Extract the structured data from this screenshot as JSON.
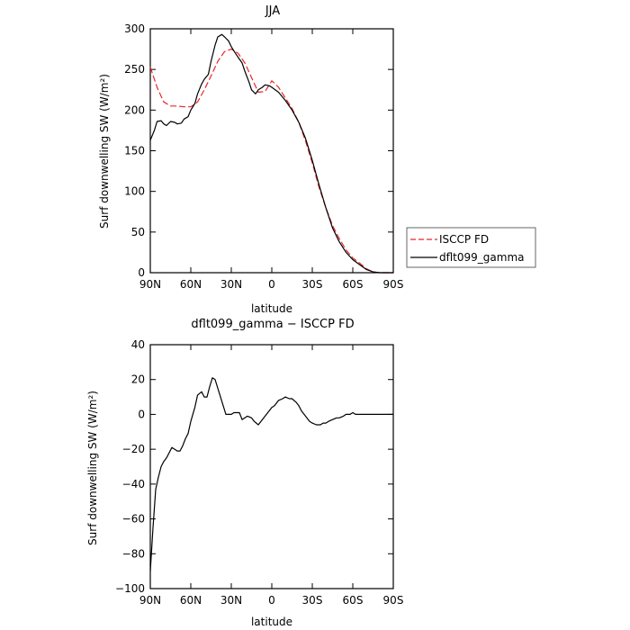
{
  "chart_data": [
    {
      "type": "line",
      "title": "JJA",
      "xlabel": "latitude",
      "ylabel": "Surf downwelling SW (W/m²)",
      "ylim": [
        0,
        300
      ],
      "xlim": [
        90,
        -90
      ],
      "x_ticks": [
        90,
        60,
        30,
        0,
        -30,
        -60,
        -90
      ],
      "x_tick_labels": [
        "90N",
        "60N",
        "30N",
        "0",
        "30S",
        "60S",
        "90S"
      ],
      "y_ticks": [
        0,
        50,
        100,
        150,
        200,
        250,
        300
      ],
      "y_tick_labels": [
        "0",
        "50",
        "100",
        "150",
        "200",
        "250",
        "300"
      ],
      "legend": {
        "placement": "right-outside"
      },
      "series": [
        {
          "name": "ISCCP FD",
          "color": "#e8262a",
          "style": "dashed",
          "x": [
            90,
            85,
            80,
            75,
            70,
            65,
            60,
            55,
            50,
            45,
            40,
            35,
            30,
            25,
            20,
            15,
            10,
            5,
            0,
            -5,
            -10,
            -15,
            -20,
            -25,
            -30,
            -35,
            -40,
            -45,
            -50,
            -55,
            -60,
            -65,
            -70,
            -75,
            -80,
            -85,
            -90
          ],
          "y": [
            253,
            228,
            210,
            205,
            205,
            204,
            204,
            210,
            225,
            242,
            260,
            272,
            275,
            270,
            258,
            240,
            222,
            223,
            236,
            228,
            215,
            202,
            185,
            162,
            135,
            105,
            80,
            58,
            42,
            28,
            18,
            12,
            5,
            1,
            0,
            0,
            0
          ]
        },
        {
          "name": "dflt099_gamma",
          "color": "#000000",
          "style": "solid",
          "x": [
            90,
            87,
            85,
            82,
            80,
            78,
            75,
            72,
            70,
            67,
            65,
            62,
            60,
            57,
            55,
            52,
            50,
            47,
            45,
            42,
            40,
            37,
            35,
            32,
            30,
            27,
            25,
            22,
            20,
            17,
            15,
            12,
            10,
            7,
            5,
            2,
            0,
            -5,
            -10,
            -15,
            -20,
            -25,
            -30,
            -35,
            -40,
            -45,
            -50,
            -55,
            -60,
            -65,
            -70,
            -75,
            -80,
            -85,
            -90
          ],
          "y": [
            163,
            175,
            186,
            187,
            183,
            181,
            186,
            185,
            183,
            184,
            189,
            192,
            200,
            208,
            220,
            232,
            238,
            244,
            260,
            280,
            290,
            293,
            290,
            285,
            278,
            270,
            265,
            258,
            248,
            235,
            225,
            220,
            225,
            228,
            231,
            230,
            228,
            222,
            212,
            200,
            185,
            165,
            138,
            108,
            80,
            55,
            38,
            25,
            16,
            10,
            4,
            1,
            0,
            0,
            0
          ]
        }
      ]
    },
    {
      "type": "line",
      "title": "dflt099_gamma − ISCCP FD",
      "xlabel": "latitude",
      "ylabel": "Surf downwelling SW (W/m²)",
      "ylim": [
        -100,
        40
      ],
      "xlim": [
        90,
        -90
      ],
      "x_ticks": [
        90,
        60,
        30,
        0,
        -30,
        -60,
        -90
      ],
      "x_tick_labels": [
        "90N",
        "60N",
        "30N",
        "0",
        "30S",
        "60S",
        "90S"
      ],
      "y_ticks": [
        -100,
        -80,
        -60,
        -40,
        -20,
        0,
        20,
        40
      ],
      "y_tick_labels": [
        "−100",
        "−80",
        "−60",
        "−40",
        "−20",
        "0",
        "20",
        "40"
      ],
      "series": [
        {
          "color": "#000000",
          "style": "solid",
          "x": [
            90,
            88,
            86,
            84,
            82,
            80,
            78,
            76,
            74,
            72,
            70,
            68,
            66,
            64,
            62,
            60,
            57,
            55,
            52,
            50,
            48,
            46,
            44,
            42,
            40,
            38,
            36,
            34,
            32,
            30,
            28,
            26,
            24,
            22,
            20,
            18,
            15,
            13,
            10,
            7,
            5,
            2,
            0,
            -2,
            -5,
            -8,
            -10,
            -13,
            -15,
            -18,
            -20,
            -22,
            -25,
            -28,
            -30,
            -33,
            -36,
            -38,
            -40,
            -42,
            -45,
            -48,
            -50,
            -53,
            -55,
            -58,
            -60,
            -62,
            -65,
            -68,
            -70,
            -75,
            -80,
            -85,
            -90
          ],
          "y": [
            -90,
            -65,
            -43,
            -36,
            -30,
            -27,
            -25,
            -22,
            -19,
            -20,
            -21,
            -21,
            -18,
            -14,
            -11,
            -4,
            4,
            11,
            13,
            10,
            10,
            16,
            21,
            20,
            15,
            10,
            5,
            0,
            0,
            0,
            1,
            1,
            1,
            -3,
            -2,
            -1,
            -2,
            -4,
            -6,
            -3,
            -1,
            2,
            4,
            5,
            8,
            9,
            10,
            9,
            9,
            7,
            5,
            2,
            -1,
            -4,
            -5,
            -6,
            -6,
            -5,
            -5,
            -4,
            -3,
            -2,
            -2,
            -1,
            0,
            0,
            1,
            0,
            0,
            0,
            0,
            0,
            0,
            0,
            0
          ]
        }
      ]
    }
  ]
}
